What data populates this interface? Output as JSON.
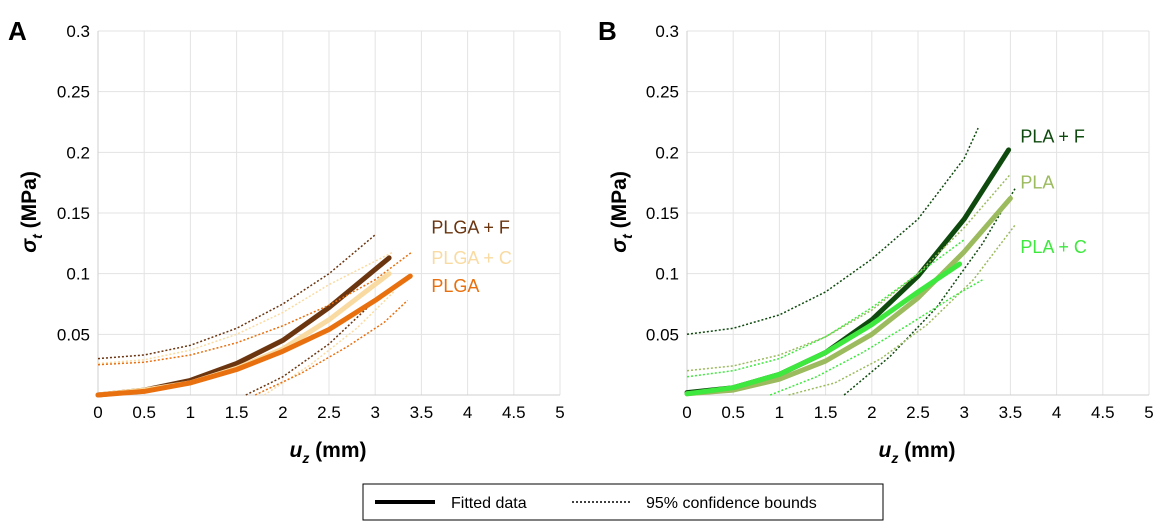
{
  "legend": {
    "fitted_label": "Fitted data",
    "bounds_label": "95% confidence bounds"
  },
  "chart_data": [
    {
      "panel": "A",
      "type": "line",
      "xlabel": "u",
      "xlabel_sub": "z",
      "xlabel_unit": " (mm)",
      "ylabel": "σ",
      "ylabel_sub": "t",
      "ylabel_unit": " (MPa)",
      "xlim": [
        0,
        5
      ],
      "ylim": [
        0,
        0.3
      ],
      "xticks": [
        "0",
        "0.5",
        "1",
        "1.5",
        "2",
        "2.5",
        "3",
        "3.5",
        "4",
        "4.5",
        "5"
      ],
      "yticks": [
        "0.05",
        "0.1",
        "0.15",
        "0.2",
        "0.25",
        "0.3"
      ],
      "grid": true,
      "series": [
        {
          "name": "PLGA + F",
          "color": "#6b3510",
          "x": [
            0,
            0.5,
            1.0,
            1.5,
            2.0,
            2.5,
            3.15
          ],
          "y": [
            0,
            0.004,
            0.012,
            0.026,
            0.045,
            0.072,
            0.113
          ],
          "upper_x": [
            0,
            0.5,
            1.0,
            1.5,
            2.0,
            2.5,
            3.0
          ],
          "upper_y": [
            0.03,
            0.033,
            0.041,
            0.055,
            0.075,
            0.1,
            0.132
          ],
          "lower_x": [
            1.6,
            2.0,
            2.5,
            3.0
          ],
          "lower_y": [
            0.0,
            0.015,
            0.042,
            0.078
          ],
          "label_y": 0.138
        },
        {
          "name": "PLGA + C",
          "color": "#f9dba2",
          "x": [
            0,
            0.5,
            1.0,
            1.5,
            2.0,
            2.5,
            3.15
          ],
          "y": [
            0,
            0.004,
            0.01,
            0.022,
            0.038,
            0.062,
            0.1
          ],
          "upper_x": [
            0,
            0.5,
            1.0,
            1.5,
            2.0,
            2.5,
            3.2
          ],
          "upper_y": [
            0.026,
            0.029,
            0.037,
            0.05,
            0.068,
            0.091,
            0.118
          ],
          "lower_x": [
            1.8,
            2.3,
            2.8,
            3.2
          ],
          "lower_y": [
            0.0,
            0.025,
            0.055,
            0.085
          ],
          "label_y": 0.113
        },
        {
          "name": "PLGA",
          "color": "#e9700f",
          "x": [
            0,
            0.5,
            1.0,
            1.5,
            2.0,
            2.5,
            3.0,
            3.38
          ],
          "y": [
            0,
            0.003,
            0.01,
            0.021,
            0.036,
            0.054,
            0.078,
            0.098
          ],
          "upper_x": [
            0,
            0.5,
            1.0,
            1.5,
            2.0,
            2.5,
            3.0,
            3.4
          ],
          "upper_y": [
            0.025,
            0.027,
            0.033,
            0.043,
            0.057,
            0.074,
            0.095,
            0.118
          ],
          "lower_x": [
            1.7,
            2.2,
            2.7,
            3.1,
            3.35
          ],
          "lower_y": [
            0.0,
            0.018,
            0.04,
            0.06,
            0.078
          ],
          "label_y": 0.09
        }
      ]
    },
    {
      "panel": "B",
      "type": "line",
      "xlabel": "u",
      "xlabel_sub": "z",
      "xlabel_unit": " (mm)",
      "ylabel": "σ",
      "ylabel_sub": "t",
      "ylabel_unit": " (MPa)",
      "xlim": [
        0,
        5
      ],
      "ylim": [
        0,
        0.3
      ],
      "xticks": [
        "0",
        "0.5",
        "1",
        "1.5",
        "2",
        "2.5",
        "3",
        "3.5",
        "4",
        "4.5",
        "5"
      ],
      "yticks": [
        "0.05",
        "0.1",
        "0.15",
        "0.2",
        "0.25",
        "0.3"
      ],
      "grid": true,
      "series": [
        {
          "name": "PLA + F",
          "color": "#0e4a0e",
          "x": [
            0,
            0.5,
            1.0,
            1.5,
            2.0,
            2.5,
            3.0,
            3.48
          ],
          "y": [
            0.002,
            0.006,
            0.017,
            0.035,
            0.062,
            0.098,
            0.145,
            0.202
          ],
          "upper_x": [
            0,
            0.5,
            1.0,
            1.5,
            2.0,
            2.5,
            3.0,
            3.15
          ],
          "upper_y": [
            0.05,
            0.055,
            0.066,
            0.085,
            0.112,
            0.145,
            0.195,
            0.22
          ],
          "lower_x": [
            1.7,
            2.2,
            2.7,
            3.2,
            3.55
          ],
          "lower_y": [
            0.0,
            0.032,
            0.072,
            0.125,
            0.17
          ],
          "label_y": 0.213
        },
        {
          "name": "PLA",
          "color": "#9bbb5e",
          "x": [
            0,
            0.5,
            1.0,
            1.5,
            2.0,
            2.5,
            3.0,
            3.5
          ],
          "y": [
            0.001,
            0.004,
            0.013,
            0.028,
            0.05,
            0.08,
            0.118,
            0.162
          ],
          "upper_x": [
            0,
            0.5,
            1.0,
            1.5,
            2.0,
            2.5,
            3.0,
            3.5
          ],
          "upper_y": [
            0.02,
            0.024,
            0.033,
            0.048,
            0.07,
            0.1,
            0.138,
            0.182
          ],
          "lower_x": [
            1.1,
            1.6,
            2.1,
            2.6,
            3.1,
            3.55
          ],
          "lower_y": [
            0.0,
            0.01,
            0.03,
            0.058,
            0.095,
            0.14
          ],
          "label_y": 0.175
        },
        {
          "name": "PLA + C",
          "color": "#3ee83e",
          "x": [
            0,
            0.5,
            1.0,
            1.5,
            2.0,
            2.5,
            2.95
          ],
          "y": [
            0.001,
            0.006,
            0.017,
            0.035,
            0.058,
            0.085,
            0.108
          ],
          "upper_x": [
            0,
            0.5,
            1.0,
            1.5,
            2.0,
            2.5,
            3.0
          ],
          "upper_y": [
            0.015,
            0.02,
            0.03,
            0.048,
            0.072,
            0.1,
            0.128
          ],
          "lower_x": [
            0.9,
            1.4,
            1.9,
            2.4,
            2.9,
            3.2
          ],
          "lower_y": [
            0.0,
            0.015,
            0.035,
            0.058,
            0.082,
            0.095
          ],
          "label_y": 0.122
        }
      ]
    }
  ]
}
